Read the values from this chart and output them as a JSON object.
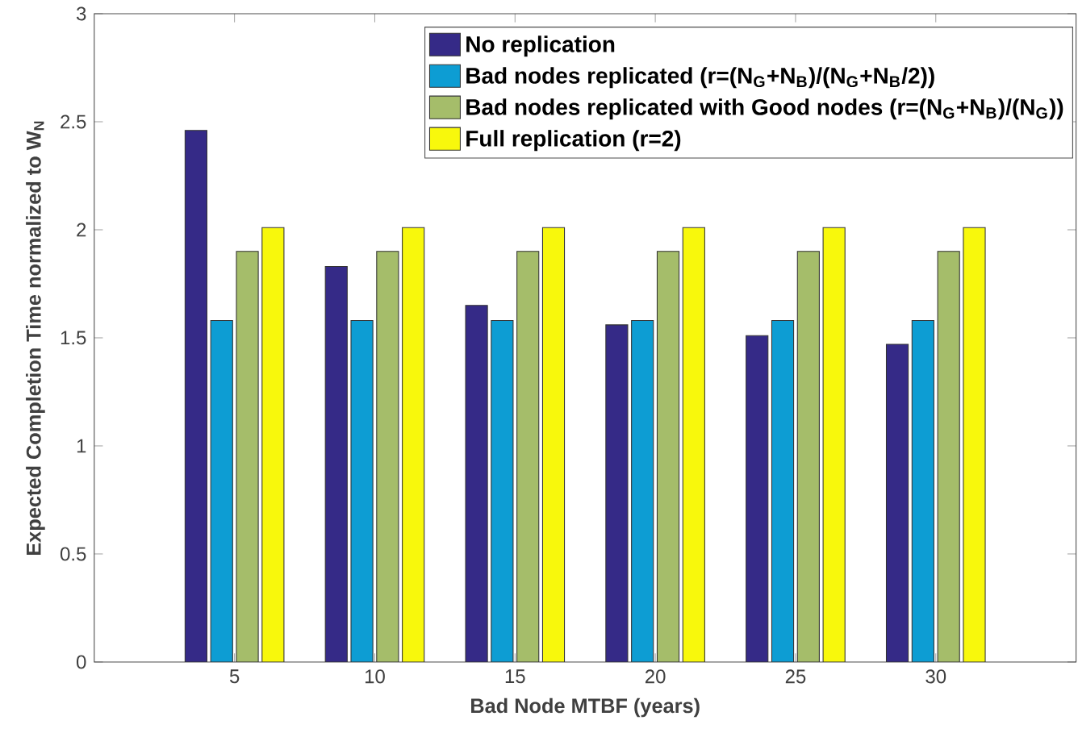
{
  "chart_data": {
    "type": "bar",
    "xlabel": "Bad Node MTBF (years)",
    "ylabel": "Expected Completion Time normalized to W$_{N}$",
    "x": [
      5,
      10,
      15,
      20,
      25,
      30
    ],
    "xlim": [
      0,
      35
    ],
    "xticks": [
      5,
      10,
      15,
      20,
      25,
      30
    ],
    "ylim": [
      0,
      3
    ],
    "yticks": [
      0,
      0.5,
      1,
      1.5,
      2,
      2.5,
      3
    ],
    "series": [
      {
        "name": "No replication",
        "color": "#352a87",
        "values": [
          2.46,
          1.83,
          1.65,
          1.56,
          1.51,
          1.47
        ]
      },
      {
        "name": "Bad nodes replicated (r=(N$_{G}$+N$_{B}$)/(N$_{G}$+N$_{B}$/2))",
        "color": "#0d9dd3",
        "values": [
          1.58,
          1.58,
          1.58,
          1.58,
          1.58,
          1.58
        ]
      },
      {
        "name": "Bad nodes replicated with Good nodes (r=(N$_{G}$+N$_{B}$)/(N$_{G}$))",
        "color": "#a5bd6a",
        "values": [
          1.9,
          1.9,
          1.9,
          1.9,
          1.9,
          1.9
        ]
      },
      {
        "name": "Full replication (r=2)",
        "color": "#f8f80c",
        "values": [
          2.01,
          2.01,
          2.01,
          2.01,
          2.01,
          2.01
        ]
      }
    ],
    "legend": "top right",
    "grid": false
  }
}
